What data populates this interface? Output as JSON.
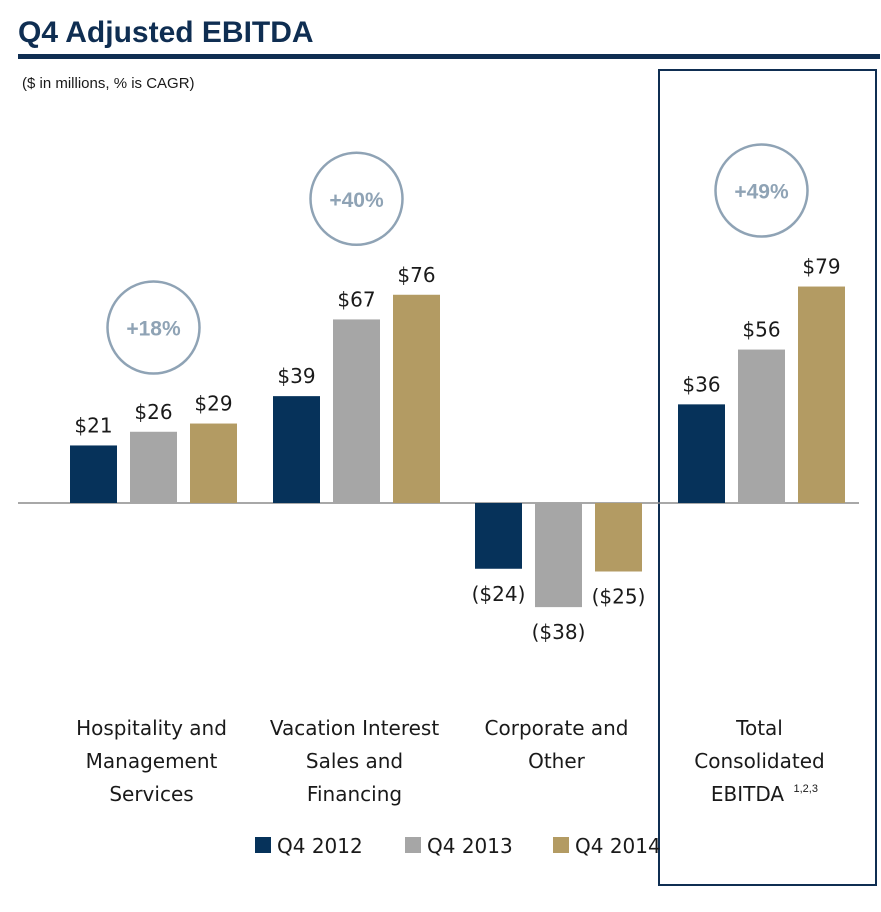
{
  "colors": {
    "navy": "#06325a",
    "gray": "#a6a6a6",
    "gold": "#b39b63",
    "circle": "#8fa3b5",
    "rule": "#0f2e52"
  },
  "chart_data": {
    "type": "bar",
    "title": "Q4 Adjusted EBITDA",
    "subtitle": "($ in millions, % is CAGR)",
    "categories": [
      [
        "Hospitality and",
        "Management",
        "Services"
      ],
      [
        "Vacation Interest",
        "Sales and",
        "Financing"
      ],
      [
        "Corporate and",
        "Other"
      ],
      [
        "Total",
        "Consolidated",
        "EBITDA"
      ]
    ],
    "category_superscripts": [
      "",
      "",
      "",
      "1,2,3"
    ],
    "series": [
      {
        "name": "Q4 2012",
        "values": [
          21,
          39,
          -24,
          36
        ],
        "labels": [
          "$21",
          "$39",
          "($24)",
          "$36"
        ]
      },
      {
        "name": "Q4 2013",
        "values": [
          26,
          67,
          -38,
          56
        ],
        "labels": [
          "$26",
          "$67",
          "($38)",
          "$56"
        ]
      },
      {
        "name": "Q4 2014",
        "values": [
          29,
          76,
          -25,
          79
        ],
        "labels": [
          "$29",
          "$76",
          "($25)",
          "$79"
        ]
      }
    ],
    "cagr": [
      "+18%",
      "+40%",
      "",
      "+49%"
    ],
    "highlighted_category": 3,
    "legend_position": "bottom",
    "grid": false
  }
}
